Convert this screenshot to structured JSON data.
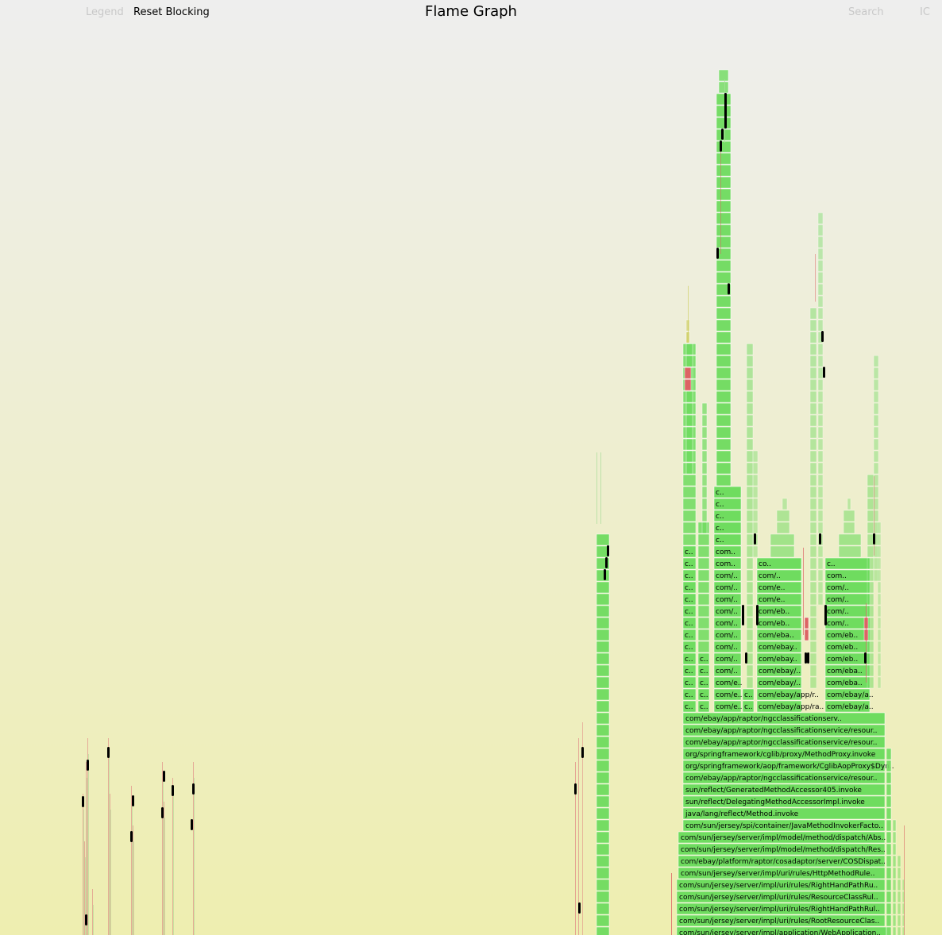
{
  "header": {
    "legend_label": "Legend",
    "reset_label": "Reset Blocking",
    "title": "Flame Graph",
    "search_label": "Search",
    "ic_label": "IC"
  },
  "colors": {
    "frame_green": "#6fdc5f",
    "frame_red": "#dc6464",
    "frame_yellow": "#cccc55",
    "blocking": "#000000"
  },
  "chart_data": {
    "type": "flame",
    "title": "Flame Graph",
    "main_stack_labels": [
      "com/sun/jersey/server/impl/application/WebApplication..",
      "com/sun/jersey/server/impl/uri/rules/RootResourceClas..",
      "com/sun/jersey/server/impl/uri/rules/RightHandPathRul..",
      "com/sun/jersey/server/impl/uri/rules/ResourceClassRul..",
      "com/sun/jersey/server/impl/uri/rules/RightHandPathRu..",
      "com/sun/jersey/server/impl/uri/rules/HttpMethodRule..",
      "com/ebay/platform/raptor/cosadaptor/server/COSDispat..",
      "com/sun/jersey/server/impl/model/method/dispatch/Res..",
      "com/sun/jersey/server/impl/model/method/dispatch/Abs..",
      "com/sun/jersey/spi/container/JavaMethodInvokerFacto..",
      "java/lang/reflect/Method.invoke",
      "sun/reflect/DelegatingMethodAccessorImpl.invoke",
      "sun/reflect/GeneratedMethodAccessor405.invoke",
      "com/ebay/app/raptor/ngcclassificationservice/resour..",
      "org/springframework/aop/framework/CglibAopProxy$Dyn..",
      "org/springframework/cglib/proxy/MethodProxy.invoke",
      "com/ebay/app/raptor/ngcclassificationservice/resour..",
      "com/ebay/app/raptor/ngcclassificationservice/resour..",
      "com/ebay/app/raptor/ngcclassificationserv.."
    ],
    "branch_labels": {
      "col_a": [
        "c..",
        "c..",
        "c..",
        "c..",
        "c..",
        "c..",
        "c..",
        "c..",
        "c..",
        "c..",
        "c..",
        "c..",
        "c..",
        "c.."
      ],
      "col_b": [
        "c..",
        "c..",
        "c..",
        "c..",
        "c.."
      ],
      "col_c": [
        "com/e..",
        "com/e..",
        "com/e..",
        "com/..",
        "com/..",
        "com/..",
        "com/..",
        "com/..",
        "com/..",
        "com/..",
        "com/..",
        "com/..",
        "com..",
        "com..",
        "c..",
        "c..",
        "c..",
        "c..",
        "c.."
      ],
      "col_d": [
        "c..",
        "c.."
      ],
      "col_e": [
        "com/ebay/app/ra..",
        "com/ebay/app/r..",
        "com/ebay/..",
        "com/ebay/..",
        "com/ebay..",
        "com/ebay..",
        "com/eba..",
        "com/eb..",
        "com/eb..",
        "com/e..",
        "com/e..",
        "com/..",
        "co.."
      ],
      "col_f": [
        "com/ebay/a..",
        "com/ebay/a..",
        "com/eba..",
        "com/eba..",
        "com/eb..",
        "com/eb..",
        "com/eb..",
        "com/..",
        "com/..",
        "com/..",
        "com/..",
        "com..",
        "c.."
      ]
    }
  }
}
